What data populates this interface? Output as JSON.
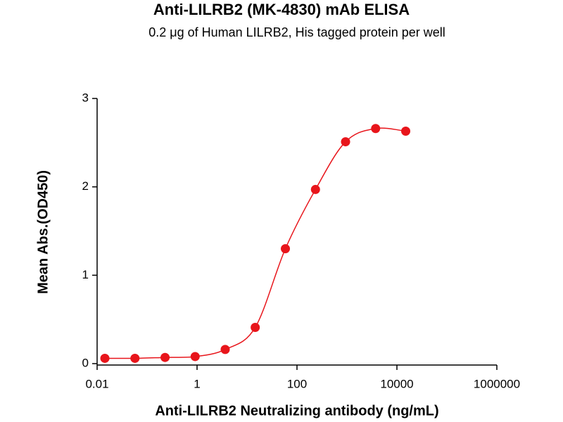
{
  "chart_data": {
    "type": "scatter",
    "title": "Anti-LILRB2 (MK-4830) mAb ELISA",
    "subtitle": "0.2 μg of Human LILRB2, His tagged protein per well",
    "x_label": "Anti-LILRB2 Neutralizing antibody (ng/mL)",
    "y_label": "Mean Abs.(OD450)",
    "xscale": "log",
    "x": [
      0.0143,
      0.0572,
      0.229,
      0.916,
      3.66,
      14.6,
      58.6,
      234.4,
      937.5,
      3750,
      15000
    ],
    "series": [
      {
        "color": "#e8151b",
        "values": [
          0.06,
          0.06,
          0.07,
          0.08,
          0.16,
          0.41,
          1.3,
          1.97,
          2.51,
          2.66,
          2.63
        ]
      }
    ],
    "xlim": [
      0.01,
      1000000
    ],
    "xticks": [
      0.01,
      1,
      100,
      10000,
      1000000
    ],
    "ylim": [
      0,
      3
    ],
    "yticks": [
      0,
      1,
      2,
      3
    ]
  }
}
